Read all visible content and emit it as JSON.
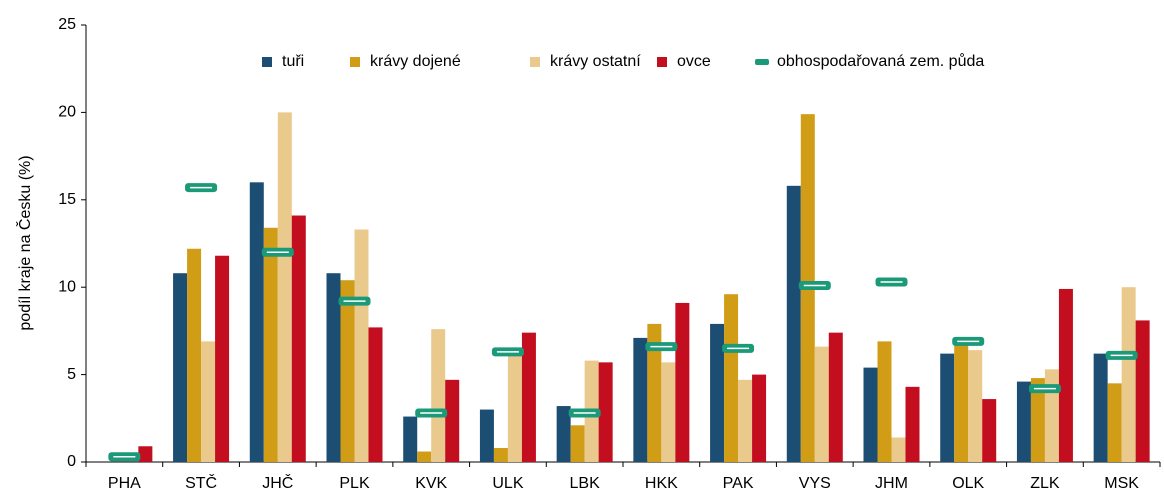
{
  "chart_data": {
    "type": "bar",
    "y_label": "podíl kraje na Česku (%)",
    "categories": [
      "PHA",
      "STČ",
      "JHČ",
      "PLK",
      "KVK",
      "ULK",
      "LBK",
      "HKK",
      "PAK",
      "VYS",
      "JHM",
      "OLK",
      "ZLK",
      "MSK"
    ],
    "series": [
      {
        "name": "tuři",
        "color": "#1c4e73",
        "mark": "bar",
        "values": [
          0,
          10.8,
          16.0,
          10.8,
          2.6,
          3.0,
          3.2,
          7.1,
          7.9,
          15.8,
          5.4,
          6.2,
          4.6,
          6.2
        ]
      },
      {
        "name": "krávy dojené",
        "color": "#d19d17",
        "mark": "bar",
        "values": [
          0,
          12.2,
          13.4,
          10.4,
          0.6,
          0.8,
          2.1,
          7.9,
          9.6,
          19.9,
          6.9,
          6.8,
          4.8,
          4.5
        ]
      },
      {
        "name": "krávy ostatní",
        "color": "#e9c98c",
        "mark": "bar",
        "values": [
          0,
          6.9,
          20.0,
          13.3,
          7.6,
          6.3,
          5.8,
          5.7,
          4.7,
          6.6,
          1.4,
          6.4,
          5.3,
          10.0
        ]
      },
      {
        "name": "ovce",
        "color": "#c20e1f",
        "mark": "bar",
        "values": [
          0.9,
          11.8,
          14.1,
          7.7,
          4.7,
          7.4,
          5.7,
          9.1,
          5.0,
          7.4,
          4.3,
          3.6,
          9.9,
          8.1
        ]
      },
      {
        "name": "obhospodařovaná zem. půda",
        "color": "#1a9a78",
        "mark": "dash",
        "values": [
          0.3,
          15.7,
          12.0,
          9.2,
          2.8,
          6.3,
          2.8,
          6.6,
          6.5,
          10.1,
          10.3,
          6.9,
          4.2,
          6.1
        ]
      }
    ],
    "ylim": [
      0,
      25
    ],
    "yticks": [
      0,
      5,
      10,
      15,
      20,
      25
    ],
    "grid": false,
    "legend": "top"
  }
}
